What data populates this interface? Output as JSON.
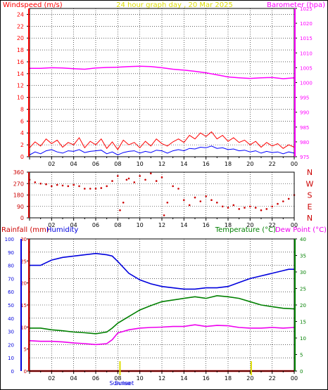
{
  "colors": {
    "wind": "#ff0000",
    "gust": "#0000ff",
    "barometer": "#ff00ff",
    "direction": "#cc0000",
    "rainfall": "#cc0000",
    "humidity": "#0000dd",
    "temperature": "#008000",
    "dewpoint": "#ee00ee",
    "title": "#dddd00",
    "grid": "#000000",
    "sun": "#dddd00"
  },
  "chart_data": [
    {
      "type": "line",
      "title": "24 hour graph day , 20 Mar 2025",
      "ylabel": "Windspeed (m/s)",
      "y2label": "Barometer (hpa)",
      "xlim": [
        0,
        24
      ],
      "ylim": [
        0,
        25
      ],
      "y2lim": [
        975,
        1025
      ],
      "yticks": [
        0,
        2,
        4,
        6,
        8,
        10,
        12,
        14,
        16,
        18,
        20,
        22,
        24
      ],
      "y2ticks": [
        975,
        980,
        985,
        990,
        995,
        1000,
        1005,
        1010,
        1015,
        1020,
        1025
      ],
      "xticks": [
        "02",
        "04",
        "06",
        "08",
        "10",
        "12",
        "14",
        "16",
        "18",
        "20",
        "22",
        "00"
      ],
      "series": [
        {
          "axis": "y2",
          "x": [
            0,
            1,
            2,
            3,
            4,
            5,
            6,
            7,
            8,
            9,
            10,
            11,
            12,
            13,
            14,
            15,
            16,
            17,
            18,
            19,
            20,
            21,
            22,
            23,
            24
          ],
          "values": [
            1004.8,
            1004.8,
            1005.0,
            1004.9,
            1004.7,
            1004.5,
            1004.9,
            1005.1,
            1005.2,
            1005.4,
            1005.5,
            1005.4,
            1005.0,
            1004.5,
            1004.2,
            1003.8,
            1003.3,
            1002.6,
            1001.9,
            1001.6,
            1001.4,
            1001.6,
            1001.7,
            1001.3,
            1001.6
          ]
        },
        {
          "name": "",
          "x": [
            0,
            0.5,
            1,
            1.5,
            2,
            2.5,
            3,
            3.5,
            4,
            4.5,
            5,
            5.5,
            6,
            6.5,
            7,
            7.5,
            8,
            8.5,
            9,
            9.5,
            10,
            10.5,
            11,
            11.5,
            12,
            12.5,
            13,
            13.5,
            14,
            14.5,
            15,
            15.5,
            16,
            16.5,
            17,
            17.5,
            18,
            18.5,
            19,
            19.5,
            20,
            20.5,
            21,
            21.5,
            22,
            22.5,
            23,
            23.5,
            24
          ],
          "values": [
            1.5,
            2.5,
            1.8,
            3.0,
            2.2,
            2.8,
            1.6,
            2.4,
            2.0,
            3.2,
            1.5,
            2.6,
            2.0,
            3.0,
            1.4,
            2.5,
            1.2,
            2.8,
            2.0,
            2.4,
            1.5,
            2.6,
            1.8,
            3.0,
            2.2,
            1.8,
            2.5,
            3.0,
            2.4,
            3.6,
            3.0,
            4.0,
            3.4,
            4.2,
            3.0,
            3.6,
            2.6,
            3.2,
            2.4,
            2.8,
            2.0,
            2.6,
            1.6,
            2.4,
            1.8,
            2.2,
            1.4,
            2.0,
            1.6
          ]
        },
        {
          "name": "",
          "x": [
            0,
            0.5,
            1,
            1.5,
            2,
            2.5,
            3,
            3.5,
            4,
            4.5,
            5,
            5.5,
            6,
            6.5,
            7,
            7.5,
            8,
            8.5,
            9,
            9.5,
            10,
            10.5,
            11,
            11.5,
            12,
            12.5,
            13,
            13.5,
            14,
            14.5,
            15,
            15.5,
            16,
            16.5,
            17,
            17.5,
            18,
            18.5,
            19,
            19.5,
            20,
            20.5,
            21,
            21.5,
            22,
            22.5,
            23,
            23.5,
            24
          ],
          "values": [
            0.3,
            0.8,
            0.5,
            1.0,
            1.2,
            0.8,
            0.6,
            1.0,
            0.9,
            1.2,
            0.7,
            0.9,
            1.0,
            1.1,
            0.5,
            0.8,
            0.3,
            0.7,
            0.9,
            1.0,
            0.6,
            0.9,
            0.7,
            1.1,
            1.0,
            0.6,
            1.0,
            1.2,
            1.0,
            1.4,
            1.3,
            1.6,
            1.5,
            1.8,
            1.4,
            1.5,
            1.2,
            1.3,
            1.0,
            1.1,
            0.8,
            1.0,
            0.6,
            0.9,
            0.7,
            0.8,
            0.5,
            0.8,
            0.6
          ]
        }
      ]
    },
    {
      "type": "scatter",
      "xlim": [
        0,
        24
      ],
      "ylim": [
        0,
        360
      ],
      "yticks": [
        0,
        90,
        180,
        270,
        360
      ],
      "compass": [
        "N",
        "W",
        "S",
        "E",
        "N"
      ],
      "xticks": [
        "02",
        "04",
        "06",
        "08",
        "10",
        "12",
        "14",
        "16",
        "18",
        "20",
        "22",
        "00"
      ],
      "series": [
        {
          "x": [
            0,
            0.5,
            1,
            1.5,
            2,
            2.5,
            3,
            3.5,
            4,
            4.5,
            5,
            5.5,
            6,
            6.5,
            7,
            7.5,
            8,
            8.2,
            8.5,
            8.8,
            9,
            9.5,
            10,
            10.5,
            11,
            11.5,
            12,
            12.2,
            12.5,
            13,
            13.5,
            14,
            14.5,
            15,
            15.5,
            16,
            16.5,
            17,
            17.5,
            18,
            18.5,
            19,
            19.5,
            20,
            20.5,
            21,
            21.5,
            22,
            22.5,
            23,
            23.5,
            24
          ],
          "values": [
            300,
            280,
            270,
            265,
            250,
            260,
            255,
            250,
            260,
            250,
            230,
            230,
            230,
            235,
            250,
            290,
            330,
            60,
            120,
            300,
            310,
            280,
            330,
            300,
            350,
            290,
            320,
            20,
            120,
            250,
            230,
            140,
            100,
            160,
            130,
            170,
            140,
            120,
            90,
            80,
            100,
            70,
            80,
            90,
            80,
            60,
            70,
            90,
            110,
            130,
            150,
            180
          ]
        }
      ]
    },
    {
      "type": "line",
      "ylabel": "Rainfall (mm)",
      "y1label": "Humidity",
      "y2label": "Temperature (°C)",
      "y3label": "Dew Point (°C)",
      "xlim": [
        0,
        24
      ],
      "rain_lim": [
        0,
        30
      ],
      "hum_lim": [
        0,
        100
      ],
      "temp_lim": [
        0,
        40
      ],
      "humticks": [
        0,
        10,
        20,
        30,
        40,
        50,
        60,
        70,
        80,
        90,
        100
      ],
      "rainticks": [
        0,
        5,
        10,
        15,
        20,
        25,
        30
      ],
      "tempticks": [
        0,
        5,
        10,
        15,
        20,
        25,
        30,
        35,
        40
      ],
      "xticks": [
        "02",
        "04",
        "06",
        "08",
        "10",
        "12",
        "14",
        "16",
        "18",
        "20",
        "22",
        "00"
      ],
      "sunrise_x": 8.2,
      "sunset_x": 20.1,
      "sunrise_label": "Sunrise",
      "sunset_label": "Sunset",
      "series": [
        {
          "name": "Humidity",
          "axis": "hum",
          "x": [
            0,
            1,
            1.5,
            2,
            3,
            4,
            5,
            6,
            7,
            7.5,
            8,
            9,
            10,
            11,
            12,
            13,
            14,
            15,
            16,
            17,
            18,
            19,
            20,
            21,
            22,
            23,
            23.5,
            24
          ],
          "values": [
            80,
            80,
            82,
            84,
            86,
            87,
            88,
            89,
            88,
            87,
            83,
            74,
            69,
            66,
            64,
            63,
            62,
            62,
            63,
            63,
            64,
            67,
            70,
            72,
            74,
            76,
            77,
            77
          ]
        },
        {
          "name": "Temperature (°C)",
          "axis": "temp",
          "x": [
            0,
            1,
            2,
            3,
            4,
            5,
            6,
            7,
            7.5,
            8,
            9,
            10,
            11,
            12,
            13,
            14,
            15,
            16,
            17,
            18,
            19,
            20,
            21,
            22,
            23,
            24
          ],
          "values": [
            13.0,
            13.0,
            12.5,
            12.2,
            11.8,
            11.6,
            11.3,
            11.8,
            13.0,
            14.5,
            16.5,
            18.5,
            19.8,
            21.0,
            21.5,
            22.0,
            22.5,
            22.0,
            22.8,
            22.5,
            22.0,
            21.0,
            20.0,
            19.5,
            19.0,
            18.8
          ]
        },
        {
          "name": "Dew Point (°C)",
          "axis": "temp",
          "x": [
            0,
            1,
            2,
            3,
            4,
            5,
            6,
            7,
            7.5,
            8,
            9,
            10,
            11,
            12,
            13,
            14,
            15,
            16,
            17,
            18,
            19,
            20,
            21,
            22,
            23,
            24
          ],
          "values": [
            9.2,
            9.0,
            9.0,
            8.8,
            8.5,
            8.3,
            8.0,
            8.3,
            9.5,
            11.5,
            12.5,
            13.0,
            13.2,
            13.3,
            13.5,
            13.5,
            14.0,
            13.5,
            13.8,
            13.7,
            13.2,
            13.0,
            13.0,
            13.2,
            13.0,
            13.2
          ]
        },
        {
          "name": "Rainfall (mm)",
          "axis": "rain",
          "x": [
            0,
            24
          ],
          "values": [
            0,
            0
          ]
        }
      ]
    }
  ]
}
